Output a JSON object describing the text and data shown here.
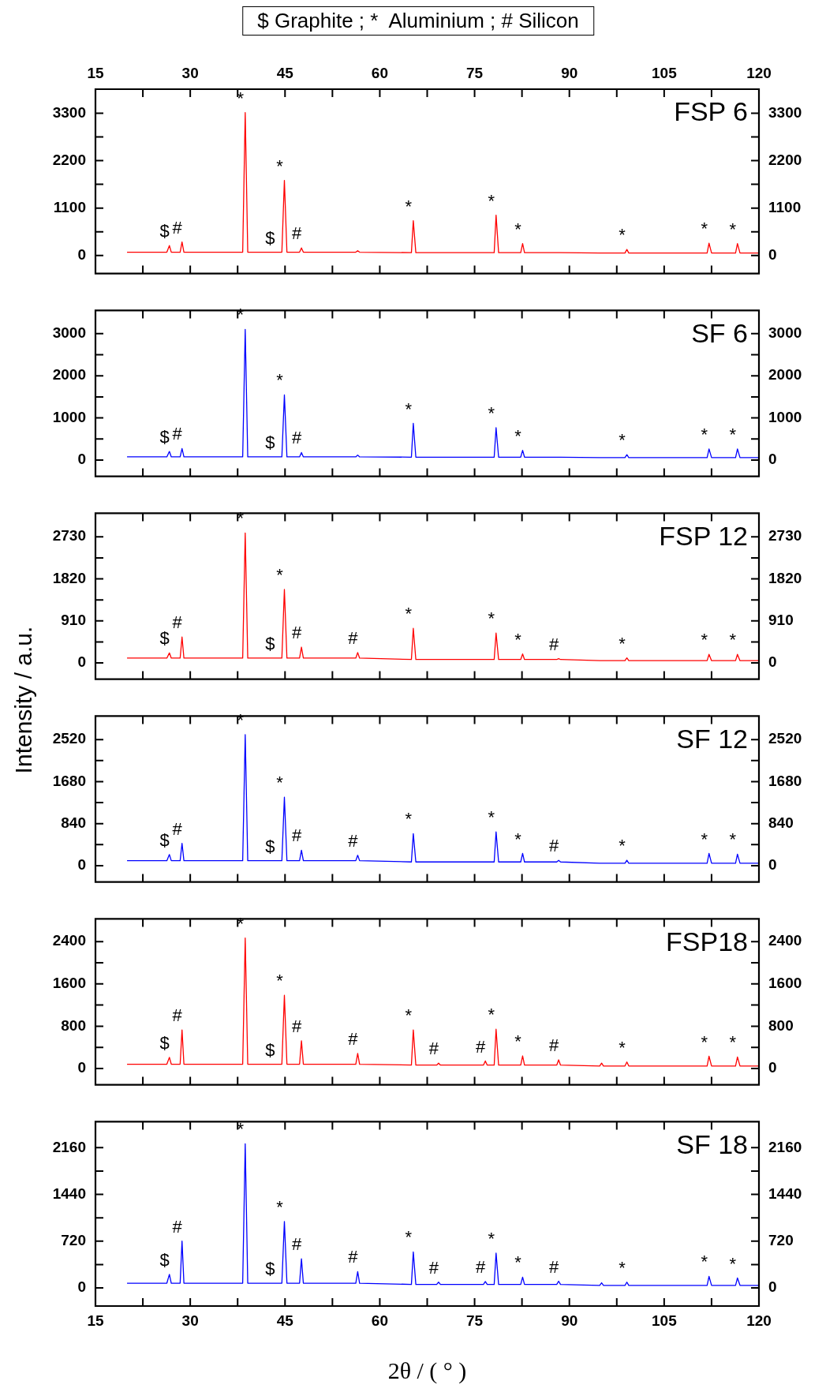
{
  "chart_data": [
    {
      "type": "line",
      "title": "FSP 6",
      "x": [
        20,
        26.3,
        26.7,
        27.0,
        28.4,
        28.7,
        29.0,
        38.3,
        38.7,
        39.1,
        43.4,
        44.5,
        44.9,
        45.3,
        47.3,
        47.6,
        47.9,
        56.2,
        56.5,
        56.8,
        65.0,
        65.3,
        65.7,
        69.0,
        69.3,
        69.6,
        76.4,
        76.7,
        77.0,
        78.1,
        78.4,
        78.8,
        82.3,
        82.6,
        82.9,
        88.0,
        88.3,
        88.6,
        94.8,
        95.1,
        95.4,
        98.8,
        99.1,
        99.4,
        111.8,
        112.1,
        112.5,
        116.3,
        116.6,
        117.0,
        120
      ],
      "series": [
        {
          "color": "#ff0000",
          "values": [
            75,
            75,
            229,
            75,
            75,
            312,
            75,
            75,
            3318,
            75,
            75,
            75,
            1742,
            75,
            75,
            174,
            75,
            75,
            110,
            75,
            65,
            807,
            65,
            65,
            65,
            65,
            65,
            65,
            65,
            65,
            935,
            65,
            65,
            275,
            65,
            65,
            65,
            65,
            55,
            55,
            55,
            55,
            138,
            55,
            55,
            284,
            55,
            55,
            275,
            55,
            55
          ]
        }
      ],
      "xlim": [
        15,
        120
      ],
      "xticks": [
        15,
        {
          "value": 22.5,
          "label": null
        },
        30,
        {
          "value": 37.5,
          "label": null
        },
        45,
        {
          "value": 52.5,
          "label": null
        },
        60,
        {
          "value": 67.5,
          "label": null
        },
        75,
        {
          "value": 82.5,
          "label": null
        },
        90,
        {
          "value": 97.5,
          "label": null
        },
        105,
        {
          "value": 112.5,
          "label": null
        },
        120
      ],
      "x2lim": [
        15,
        120
      ],
      "x2ticks": [
        15,
        {
          "value": 22.5,
          "label": null
        },
        30,
        {
          "value": 37.5,
          "label": null
        },
        45,
        {
          "value": 52.5,
          "label": null
        },
        60,
        {
          "value": 67.5,
          "label": null
        },
        75,
        {
          "value": 82.5,
          "label": null
        },
        90,
        {
          "value": 97.5,
          "label": null
        },
        105,
        {
          "value": 112.5,
          "label": null
        },
        120
      ],
      "ylim": [
        -420,
        3860
      ],
      "yticks": [
        0,
        {
          "value": 550,
          "label": null
        },
        1100,
        {
          "value": 1650,
          "label": null
        },
        2200,
        {
          "value": 2750,
          "label": null
        },
        3300
      ],
      "y2lim": [
        -420,
        3860
      ],
      "y2ticks": [
        0,
        {
          "value": 550,
          "label": null
        },
        1100,
        {
          "value": 1650,
          "label": null
        },
        2200,
        {
          "value": 2750,
          "label": null
        },
        3300
      ],
      "tick_labels": "y",
      "annotations": [
        "$ Graphite ; *  Aluminium ; # Silicon",
        {
          "text": "$",
          "x": 26.7,
          "y": 229
        },
        {
          "text": "#",
          "x": 28.7,
          "y": 312
        },
        {
          "text": "*",
          "x": 38.7,
          "y": 3318
        },
        {
          "text": "$",
          "x": 43.4,
          "y": 75
        },
        {
          "text": "*",
          "x": 44.9,
          "y": 1742
        },
        {
          "text": "#",
          "x": 47.6,
          "y": 174
        },
        {
          "text": "*",
          "x": 65.3,
          "y": 807
        },
        {
          "text": "*",
          "x": 78.4,
          "y": 935
        },
        {
          "text": "*",
          "x": 82.6,
          "y": 275
        },
        {
          "text": "*",
          "x": 99.1,
          "y": 138
        },
        {
          "text": "*",
          "x": 112.1,
          "y": 284
        },
        {
          "text": "*",
          "x": 116.6,
          "y": 275
        }
      ]
    },
    {
      "type": "line",
      "title": "SF 6",
      "x": [
        20,
        26.3,
        26.7,
        27.0,
        28.4,
        28.7,
        29.0,
        38.3,
        38.7,
        39.1,
        43.4,
        44.5,
        44.9,
        45.3,
        47.3,
        47.6,
        47.9,
        56.2,
        56.5,
        56.8,
        65.0,
        65.3,
        65.7,
        69.0,
        69.3,
        69.6,
        76.4,
        76.7,
        77.0,
        78.1,
        78.4,
        78.8,
        82.3,
        82.6,
        82.9,
        88.0,
        88.3,
        88.6,
        94.8,
        95.1,
        95.4,
        98.8,
        99.1,
        99.4,
        111.8,
        112.1,
        112.5,
        116.3,
        116.6,
        117.0,
        120
      ],
      "series": [
        {
          "color": "#0000ff",
          "values": [
            77,
            77,
            205,
            77,
            77,
            274,
            77,
            77,
            3103,
            77,
            77,
            77,
            1547,
            77,
            77,
            180,
            77,
            77,
            120,
            77,
            70,
            872,
            70,
            70,
            70,
            70,
            70,
            70,
            70,
            70,
            769,
            70,
            70,
            231,
            70,
            70,
            70,
            70,
            60,
            60,
            60,
            60,
            128,
            60,
            60,
            265,
            60,
            60,
            265,
            60,
            60
          ]
        }
      ],
      "xlim": [
        15,
        120
      ],
      "xticks": [
        15,
        {
          "value": 22.5,
          "label": null
        },
        30,
        {
          "value": 37.5,
          "label": null
        },
        45,
        {
          "value": 52.5,
          "label": null
        },
        60,
        {
          "value": 67.5,
          "label": null
        },
        75,
        {
          "value": 82.5,
          "label": null
        },
        90,
        {
          "value": 97.5,
          "label": null
        },
        105,
        {
          "value": 112.5,
          "label": null
        },
        120
      ],
      "ylim": [
        -385,
        3550
      ],
      "yticks": [
        0,
        {
          "value": 500,
          "label": null
        },
        1000,
        {
          "value": 1500,
          "label": null
        },
        2000,
        {
          "value": 2500,
          "label": null
        },
        3000
      ],
      "y2lim": [
        -385,
        3550
      ],
      "y2ticks": [
        0,
        {
          "value": 500,
          "label": null
        },
        1000,
        {
          "value": 1500,
          "label": null
        },
        2000,
        {
          "value": 2500,
          "label": null
        },
        3000
      ],
      "tick_labels": "y",
      "annotations": [
        {
          "text": "$",
          "x": 26.7,
          "y": 205
        },
        {
          "text": "#",
          "x": 28.7,
          "y": 274
        },
        {
          "text": "*",
          "x": 38.7,
          "y": 3103
        },
        {
          "text": "$",
          "x": 43.4,
          "y": 77
        },
        {
          "text": "*",
          "x": 44.9,
          "y": 1547
        },
        {
          "text": "#",
          "x": 47.6,
          "y": 180
        },
        {
          "text": "*",
          "x": 65.3,
          "y": 872
        },
        {
          "text": "*",
          "x": 78.4,
          "y": 769
        },
        {
          "text": "*",
          "x": 82.6,
          "y": 231
        },
        {
          "text": "*",
          "x": 99.1,
          "y": 128
        },
        {
          "text": "*",
          "x": 112.1,
          "y": 265
        },
        {
          "text": "*",
          "x": 116.6,
          "y": 265
        }
      ]
    },
    {
      "type": "line",
      "title": "FSP 12",
      "ylabel": "Intensity / a.u.",
      "x": [
        20,
        26.3,
        26.7,
        27.0,
        28.4,
        28.7,
        29.0,
        38.3,
        38.7,
        39.1,
        43.4,
        44.5,
        44.9,
        45.3,
        47.3,
        47.6,
        47.9,
        56.2,
        56.5,
        56.8,
        65.0,
        65.3,
        65.7,
        69.0,
        69.3,
        69.6,
        76.4,
        76.7,
        77.0,
        78.1,
        78.4,
        78.8,
        82.3,
        82.6,
        82.9,
        88.0,
        88.3,
        88.6,
        94.8,
        95.1,
        95.4,
        98.8,
        99.1,
        99.4,
        111.8,
        112.1,
        112.5,
        116.3,
        116.6,
        117.0,
        120
      ],
      "series": [
        {
          "color": "#ff0000",
          "values": [
            105,
            105,
            218,
            105,
            105,
            561,
            105,
            105,
            2815,
            105,
            105,
            105,
            1590,
            105,
            105,
            343,
            105,
            105,
            226,
            105,
            75,
            749,
            75,
            75,
            75,
            75,
            75,
            75,
            75,
            75,
            647,
            75,
            75,
            195,
            75,
            75,
            94,
            75,
            50,
            50,
            50,
            50,
            109,
            50,
            50,
            187,
            50,
            50,
            187,
            50,
            50
          ]
        }
      ],
      "xlim": [
        15,
        120
      ],
      "xticks": [
        15,
        {
          "value": 22.5,
          "label": null
        },
        30,
        {
          "value": 37.5,
          "label": null
        },
        45,
        {
          "value": 52.5,
          "label": null
        },
        60,
        {
          "value": 67.5,
          "label": null
        },
        75,
        {
          "value": 82.5,
          "label": null
        },
        90,
        {
          "value": 97.5,
          "label": null
        },
        105,
        {
          "value": 112.5,
          "label": null
        },
        120
      ],
      "ylim": [
        -350,
        3240
      ],
      "yticks": [
        0,
        {
          "value": 455,
          "label": null
        },
        910,
        {
          "value": 1365,
          "label": null
        },
        1820,
        {
          "value": 2275,
          "label": null
        },
        2730
      ],
      "y2lim": [
        -350,
        3240
      ],
      "y2ticks": [
        0,
        {
          "value": 455,
          "label": null
        },
        910,
        {
          "value": 1365,
          "label": null
        },
        1820,
        {
          "value": 2275,
          "label": null
        },
        2730
      ],
      "tick_labels": "y",
      "annotations": [
        {
          "text": "$",
          "x": 26.7,
          "y": 218
        },
        {
          "text": "#",
          "x": 28.7,
          "y": 561
        },
        {
          "text": "*",
          "x": 38.7,
          "y": 2815
        },
        {
          "text": "$",
          "x": 43.4,
          "y": 105
        },
        {
          "text": "*",
          "x": 44.9,
          "y": 1590
        },
        {
          "text": "#",
          "x": 47.6,
          "y": 343
        },
        {
          "text": "#",
          "x": 56.5,
          "y": 226
        },
        {
          "text": "*",
          "x": 65.3,
          "y": 749
        },
        {
          "text": "*",
          "x": 78.4,
          "y": 647
        },
        {
          "text": "*",
          "x": 82.6,
          "y": 195
        },
        {
          "text": "#",
          "x": 88.3,
          "y": 94
        },
        {
          "text": "*",
          "x": 99.1,
          "y": 109
        },
        {
          "text": "*",
          "x": 112.1,
          "y": 187
        },
        {
          "text": "*",
          "x": 116.6,
          "y": 187
        }
      ]
    },
    {
      "type": "line",
      "title": "SF 12",
      "x": [
        20,
        26.3,
        26.7,
        27.0,
        28.4,
        28.7,
        29.0,
        38.3,
        38.7,
        39.1,
        43.4,
        44.5,
        44.9,
        45.3,
        47.3,
        47.6,
        47.9,
        56.2,
        56.5,
        56.8,
        65.0,
        65.3,
        65.7,
        69.0,
        69.3,
        69.6,
        76.4,
        76.7,
        77.0,
        78.1,
        78.4,
        78.8,
        82.3,
        82.6,
        82.9,
        88.0,
        88.3,
        88.6,
        94.8,
        95.1,
        95.4,
        98.8,
        99.1,
        99.4,
        111.8,
        112.1,
        112.5,
        116.3,
        116.6,
        117.0,
        120
      ],
      "series": [
        {
          "color": "#0000ff",
          "values": [
            100,
            100,
            223,
            100,
            100,
            446,
            100,
            100,
            2620,
            100,
            100,
            100,
            1368,
            100,
            100,
            310,
            100,
            100,
            209,
            100,
            75,
            641,
            75,
            75,
            75,
            75,
            75,
            75,
            75,
            75,
            677,
            75,
            75,
            245,
            75,
            75,
            108,
            75,
            50,
            50,
            50,
            50,
            108,
            50,
            50,
            245,
            50,
            50,
            230,
            50,
            50
          ]
        }
      ],
      "xlim": [
        15,
        120
      ],
      "xticks": [
        15,
        {
          "value": 22.5,
          "label": null
        },
        30,
        {
          "value": 37.5,
          "label": null
        },
        45,
        {
          "value": 52.5,
          "label": null
        },
        60,
        {
          "value": 67.5,
          "label": null
        },
        75,
        {
          "value": 82.5,
          "label": null
        },
        90,
        {
          "value": 97.5,
          "label": null
        },
        105,
        {
          "value": 112.5,
          "label": null
        },
        120
      ],
      "ylim": [
        -325,
        2990
      ],
      "yticks": [
        0,
        {
          "value": 420,
          "label": null
        },
        840,
        {
          "value": 1260,
          "label": null
        },
        1680,
        {
          "value": 2100,
          "label": null
        },
        2520
      ],
      "y2lim": [
        -325,
        2990
      ],
      "y2ticks": [
        0,
        {
          "value": 420,
          "label": null
        },
        840,
        {
          "value": 1260,
          "label": null
        },
        1680,
        {
          "value": 2100,
          "label": null
        },
        2520
      ],
      "tick_labels": "y",
      "annotations": [
        {
          "text": "$",
          "x": 26.7,
          "y": 223
        },
        {
          "text": "#",
          "x": 28.7,
          "y": 446
        },
        {
          "text": "*",
          "x": 38.7,
          "y": 2620
        },
        {
          "text": "$",
          "x": 43.4,
          "y": 100
        },
        {
          "text": "*",
          "x": 44.9,
          "y": 1368
        },
        {
          "text": "#",
          "x": 47.6,
          "y": 310
        },
        {
          "text": "#",
          "x": 56.5,
          "y": 209
        },
        {
          "text": "*",
          "x": 65.3,
          "y": 641
        },
        {
          "text": "*",
          "x": 78.4,
          "y": 677
        },
        {
          "text": "*",
          "x": 82.6,
          "y": 245
        },
        {
          "text": "#",
          "x": 88.3,
          "y": 108
        },
        {
          "text": "*",
          "x": 99.1,
          "y": 108
        },
        {
          "text": "*",
          "x": 112.1,
          "y": 245
        },
        {
          "text": "*",
          "x": 116.6,
          "y": 230
        }
      ]
    },
    {
      "type": "line",
      "title": "FSP18",
      "x": [
        20,
        26.3,
        26.7,
        27.0,
        28.4,
        28.7,
        29.0,
        38.3,
        38.7,
        39.1,
        43.4,
        44.5,
        44.9,
        45.3,
        47.3,
        47.6,
        47.9,
        56.2,
        56.5,
        56.8,
        65.0,
        65.3,
        65.7,
        69.0,
        69.3,
        69.6,
        76.4,
        76.7,
        77.0,
        78.1,
        78.4,
        78.8,
        82.3,
        82.6,
        82.9,
        88.0,
        88.3,
        88.6,
        94.8,
        95.1,
        95.4,
        98.8,
        99.1,
        99.4,
        111.8,
        112.1,
        112.5,
        116.3,
        116.6,
        117.0,
        120
      ],
      "series": [
        {
          "color": "#ff0000",
          "values": [
            82,
            82,
            211,
            82,
            82,
            730,
            82,
            82,
            2469,
            82,
            82,
            82,
            1385,
            82,
            82,
            525,
            82,
            82,
            286,
            82,
            65,
            730,
            65,
            65,
            102,
            65,
            65,
            143,
            65,
            65,
            743,
            65,
            65,
            239,
            65,
            65,
            164,
            65,
            48,
            102,
            48,
            48,
            123,
            48,
            48,
            232,
            48,
            48,
            218,
            48,
            48
          ]
        }
      ],
      "xlim": [
        15,
        120
      ],
      "xticks": [
        15,
        {
          "value": 22.5,
          "label": null
        },
        30,
        {
          "value": 37.5,
          "label": null
        },
        45,
        {
          "value": 52.5,
          "label": null
        },
        60,
        {
          "value": 67.5,
          "label": null
        },
        75,
        {
          "value": 82.5,
          "label": null
        },
        90,
        {
          "value": 97.5,
          "label": null
        },
        105,
        {
          "value": 112.5,
          "label": null
        },
        120
      ],
      "ylim": [
        -307,
        2830
      ],
      "yticks": [
        0,
        {
          "value": 400,
          "label": null
        },
        800,
        {
          "value": 1200,
          "label": null
        },
        1600,
        {
          "value": 2000,
          "label": null
        },
        2400
      ],
      "y2lim": [
        -307,
        2830
      ],
      "y2ticks": [
        0,
        {
          "value": 400,
          "label": null
        },
        800,
        {
          "value": 1200,
          "label": null
        },
        1600,
        {
          "value": 2000,
          "label": null
        },
        2400
      ],
      "tick_labels": "y",
      "annotations": [
        {
          "text": "$",
          "x": 26.7,
          "y": 211
        },
        {
          "text": "#",
          "x": 28.7,
          "y": 730
        },
        {
          "text": "*",
          "x": 38.7,
          "y": 2469
        },
        {
          "text": "$",
          "x": 43.4,
          "y": 82
        },
        {
          "text": "*",
          "x": 44.9,
          "y": 1385
        },
        {
          "text": "#",
          "x": 47.6,
          "y": 525
        },
        {
          "text": "#",
          "x": 56.5,
          "y": 286
        },
        {
          "text": "*",
          "x": 65.3,
          "y": 730
        },
        {
          "text": "#",
          "x": 69.3,
          "y": 102
        },
        {
          "text": "#",
          "x": 76.7,
          "y": 143
        },
        {
          "text": "*",
          "x": 78.4,
          "y": 743
        },
        {
          "text": "*",
          "x": 82.6,
          "y": 239
        },
        {
          "text": "#",
          "x": 88.3,
          "y": 164
        },
        {
          "text": "*",
          "x": 99.1,
          "y": 123
        },
        {
          "text": "*",
          "x": 112.1,
          "y": 232
        },
        {
          "text": "*",
          "x": 116.6,
          "y": 218
        }
      ]
    },
    {
      "type": "line",
      "title": "SF 18",
      "xlabel": "2θ / ( ° )",
      "x": [
        20,
        26.3,
        26.7,
        27.0,
        28.4,
        28.7,
        29.0,
        38.3,
        38.7,
        39.1,
        43.4,
        44.5,
        44.9,
        45.3,
        47.3,
        47.6,
        47.9,
        56.2,
        56.5,
        56.8,
        65.0,
        65.3,
        65.7,
        69.0,
        69.3,
        69.6,
        76.4,
        76.7,
        77.0,
        78.1,
        78.4,
        78.8,
        82.3,
        82.6,
        82.9,
        88.0,
        88.3,
        88.6,
        94.8,
        95.1,
        95.4,
        98.8,
        99.1,
        99.4,
        111.8,
        112.1,
        112.5,
        116.3,
        116.6,
        117.0,
        120
      ],
      "series": [
        {
          "color": "#0000ff",
          "values": [
            74,
            74,
            210,
            74,
            74,
            722,
            74,
            74,
            2221,
            74,
            74,
            74,
            1024,
            74,
            74,
            450,
            74,
            74,
            253,
            74,
            55,
            555,
            55,
            55,
            90,
            55,
            55,
            99,
            55,
            55,
            537,
            55,
            55,
            167,
            55,
            55,
            105,
            55,
            40,
            80,
            40,
            40,
            90,
            40,
            40,
            179,
            40,
            40,
            154,
            40,
            40
          ]
        }
      ],
      "xlim": [
        15,
        120
      ],
      "xticks": [
        15,
        {
          "value": 22.5,
          "label": null
        },
        30,
        {
          "value": 37.5,
          "label": null
        },
        45,
        {
          "value": 52.5,
          "label": null
        },
        60,
        {
          "value": 67.5,
          "label": null
        },
        75,
        {
          "value": 82.5,
          "label": null
        },
        90,
        {
          "value": 97.5,
          "label": null
        },
        105,
        {
          "value": 112.5,
          "label": null
        },
        120
      ],
      "ylim": [
        -278,
        2560
      ],
      "yticks": [
        0,
        {
          "value": 360,
          "label": null
        },
        720,
        {
          "value": 1080,
          "label": null
        },
        1440,
        {
          "value": 1800,
          "label": null
        },
        2160
      ],
      "y2lim": [
        -278,
        2560
      ],
      "y2ticks": [
        0,
        {
          "value": 360,
          "label": null
        },
        720,
        {
          "value": 1080,
          "label": null
        },
        1440,
        {
          "value": 1800,
          "label": null
        },
        2160
      ],
      "annotations": [
        {
          "text": "$",
          "x": 26.7,
          "y": 210
        },
        {
          "text": "#",
          "x": 28.7,
          "y": 722
        },
        {
          "text": "*",
          "x": 38.7,
          "y": 2221
        },
        {
          "text": "$",
          "x": 43.4,
          "y": 74
        },
        {
          "text": "*",
          "x": 44.9,
          "y": 1024
        },
        {
          "text": "#",
          "x": 47.6,
          "y": 450
        },
        {
          "text": "#",
          "x": 56.5,
          "y": 253
        },
        {
          "text": "*",
          "x": 65.3,
          "y": 555
        },
        {
          "text": "#",
          "x": 69.3,
          "y": 90
        },
        {
          "text": "#",
          "x": 76.7,
          "y": 99
        },
        {
          "text": "*",
          "x": 78.4,
          "y": 537
        },
        {
          "text": "*",
          "x": 82.6,
          "y": 167
        },
        {
          "text": "#",
          "x": 88.3,
          "y": 105
        },
        {
          "text": "*",
          "x": 99.1,
          "y": 90
        },
        {
          "text": "*",
          "x": 112.1,
          "y": 179
        },
        {
          "text": "*",
          "x": 116.6,
          "y": 154
        }
      ]
    }
  ]
}
